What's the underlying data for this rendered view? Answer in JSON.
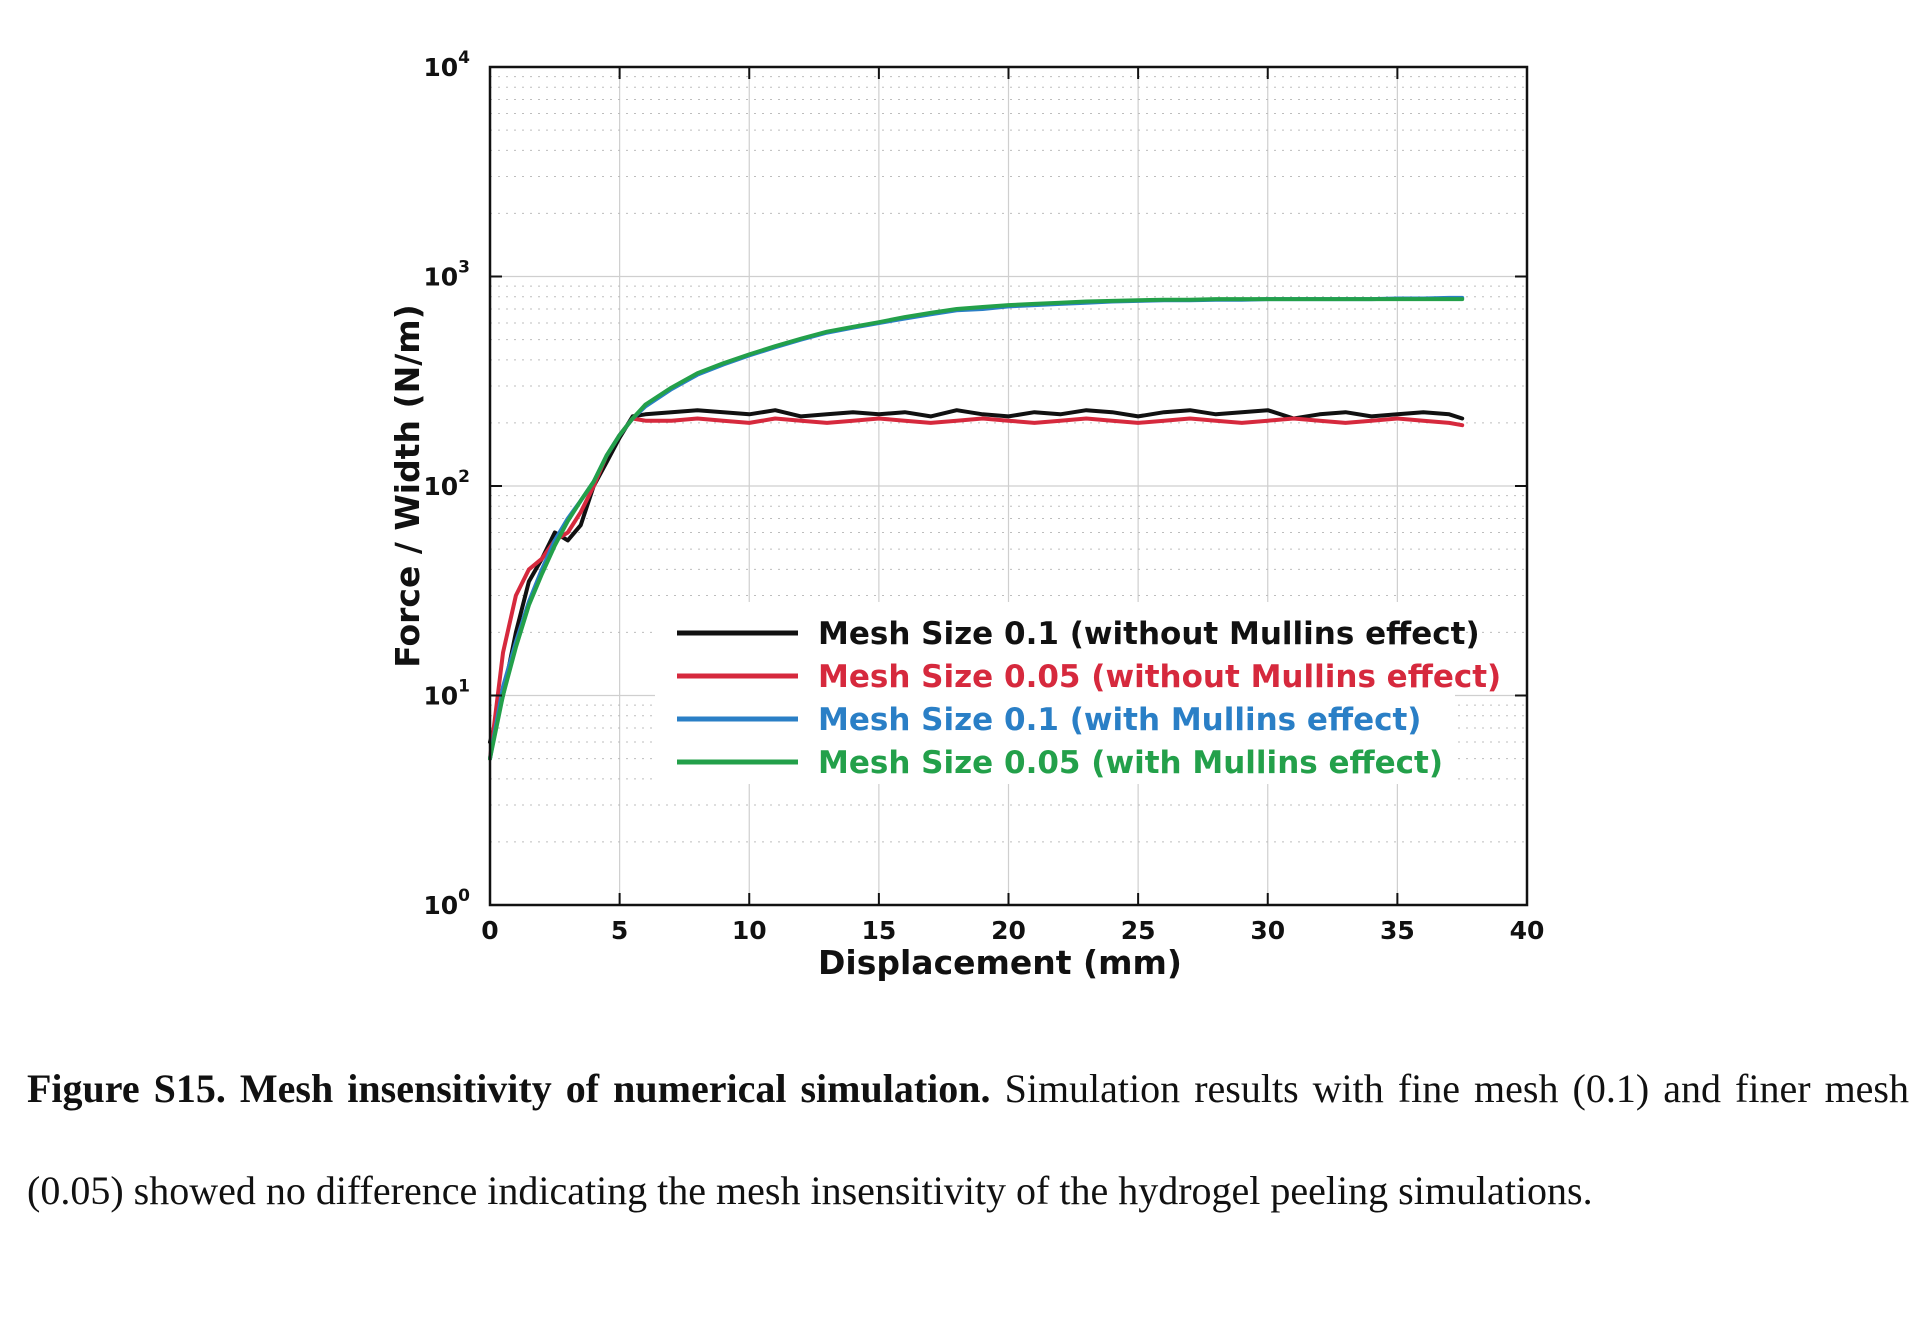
{
  "chart_data": {
    "type": "line",
    "xlabel": "Displacement (mm)",
    "ylabel": "Force / Width (N/m)",
    "xlim": [
      0,
      40
    ],
    "ylim": [
      1,
      10000
    ],
    "yscale": "log",
    "grid": true,
    "legend_position": "center-right",
    "x_ticks": [
      "0",
      "5",
      "10",
      "15",
      "20",
      "25",
      "30",
      "35",
      "40"
    ],
    "y_ticks": [
      {
        "base": "10",
        "exp": "0"
      },
      {
        "base": "10",
        "exp": "1"
      },
      {
        "base": "10",
        "exp": "2"
      },
      {
        "base": "10",
        "exp": "3"
      },
      {
        "base": "10",
        "exp": "4"
      }
    ],
    "series": [
      {
        "name": "Mesh Size 0.1 (without Mullins effect)",
        "color": "#111111",
        "x": [
          0,
          0.5,
          1,
          1.5,
          2,
          2.5,
          3,
          3.5,
          4,
          4.5,
          5,
          5.5,
          6,
          7,
          8,
          9,
          10,
          11,
          12,
          13,
          14,
          15,
          16,
          17,
          18,
          19,
          20,
          21,
          22,
          23,
          24,
          25,
          26,
          27,
          28,
          29,
          30,
          31,
          32,
          33,
          34,
          35,
          36,
          37,
          37.5
        ],
        "y": [
          6,
          10,
          20,
          35,
          45,
          60,
          55,
          65,
          100,
          130,
          170,
          215,
          220,
          225,
          230,
          225,
          220,
          230,
          215,
          220,
          225,
          220,
          225,
          215,
          230,
          220,
          215,
          225,
          220,
          230,
          225,
          215,
          225,
          230,
          220,
          225,
          230,
          210,
          220,
          225,
          215,
          220,
          225,
          220,
          210
        ]
      },
      {
        "name": "Mesh Size 0.05 (without Mullins effect)",
        "color": "#d6293d",
        "x": [
          0,
          0.5,
          1,
          1.5,
          2,
          2.5,
          3,
          3.5,
          4,
          4.5,
          5,
          5.5,
          6,
          7,
          8,
          9,
          10,
          11,
          12,
          13,
          14,
          15,
          16,
          17,
          18,
          19,
          20,
          21,
          22,
          23,
          24,
          25,
          26,
          27,
          28,
          29,
          30,
          31,
          32,
          33,
          34,
          35,
          36,
          37,
          37.5
        ],
        "y": [
          5,
          16,
          30,
          40,
          45,
          55,
          60,
          75,
          100,
          140,
          175,
          210,
          205,
          205,
          210,
          205,
          200,
          210,
          205,
          200,
          205,
          210,
          205,
          200,
          205,
          210,
          205,
          200,
          205,
          210,
          205,
          200,
          205,
          210,
          205,
          200,
          205,
          210,
          205,
          200,
          205,
          210,
          205,
          200,
          195
        ]
      },
      {
        "name": "Mesh Size 0.1 (with Mullins effect)",
        "color": "#2a7fc6",
        "x": [
          0,
          0.5,
          1,
          1.5,
          2,
          2.5,
          3,
          3.5,
          4,
          4.5,
          5,
          5.5,
          6,
          7,
          8,
          9,
          10,
          11,
          12,
          13,
          14,
          15,
          16,
          17,
          18,
          19,
          20,
          21,
          22,
          23,
          24,
          25,
          26,
          27,
          28,
          29,
          30,
          31,
          32,
          33,
          34,
          35,
          36,
          37,
          37.5
        ],
        "y": [
          5,
          11,
          18,
          28,
          40,
          55,
          70,
          85,
          105,
          140,
          175,
          210,
          240,
          290,
          340,
          380,
          420,
          460,
          500,
          540,
          570,
          600,
          630,
          660,
          690,
          700,
          720,
          730,
          740,
          750,
          760,
          765,
          770,
          770,
          775,
          775,
          780,
          780,
          780,
          780,
          780,
          785,
          785,
          790,
          790
        ]
      },
      {
        "name": "Mesh Size 0.05 (with Mullins effect)",
        "color": "#23a04a",
        "x": [
          0,
          0.5,
          1,
          1.5,
          2,
          2.5,
          3,
          3.5,
          4,
          4.5,
          5,
          5.5,
          6,
          7,
          8,
          9,
          10,
          11,
          12,
          13,
          14,
          15,
          16,
          17,
          18,
          19,
          20,
          21,
          22,
          23,
          24,
          25,
          26,
          27,
          28,
          29,
          30,
          31,
          32,
          33,
          34,
          35,
          36,
          37,
          37.5
        ],
        "y": [
          5,
          10,
          17,
          27,
          38,
          52,
          68,
          85,
          105,
          140,
          175,
          210,
          245,
          295,
          345,
          385,
          425,
          465,
          505,
          545,
          575,
          605,
          640,
          670,
          700,
          715,
          730,
          740,
          750,
          760,
          765,
          770,
          775,
          775,
          780,
          780,
          780,
          780,
          780,
          780,
          780,
          780,
          780,
          780,
          780
        ]
      }
    ]
  },
  "caption": {
    "bold": "Figure S15. Mesh insensitivity of numerical simulation.",
    "text": " Simulation results with fine mesh (0.1) and finer mesh (0.05) showed no difference indicating the mesh insensitivity of the hydrogel peeling simulations."
  }
}
